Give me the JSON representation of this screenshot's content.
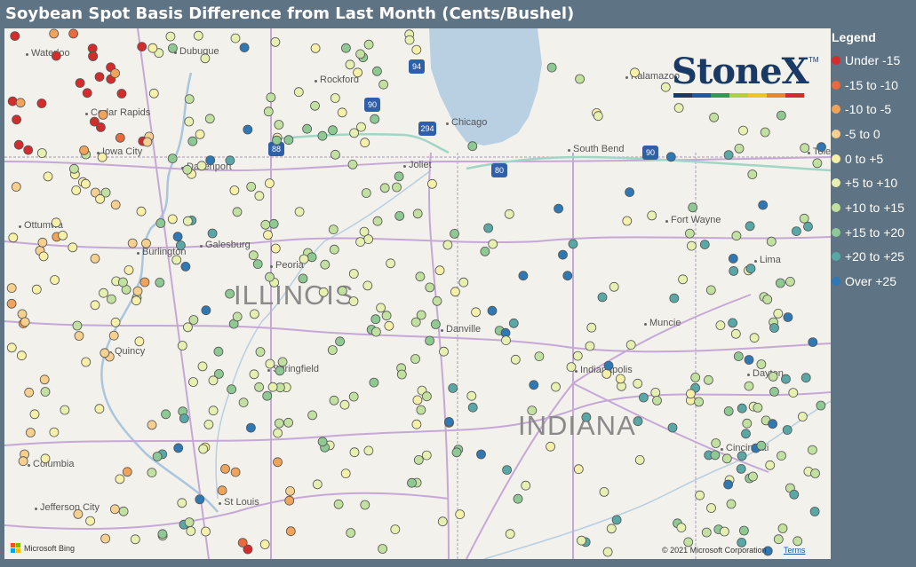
{
  "title": "Soybean Spot Basis Difference from Last Month (Cents/Bushel)",
  "legend": {
    "title": "Legend",
    "items": [
      {
        "label": "Under -15",
        "color": "#d42c2c"
      },
      {
        "label": "-15 to -10",
        "color": "#ea6a3c"
      },
      {
        "label": "-10 to -5",
        "color": "#f2a35a"
      },
      {
        "label": "-5 to 0",
        "color": "#f7cf8e"
      },
      {
        "label": "0 to +5",
        "color": "#f7f0a8"
      },
      {
        "label": "+5 to +10",
        "color": "#e6f0b0"
      },
      {
        "label": "+10 to +15",
        "color": "#c2e0a0"
      },
      {
        "label": "+15 to +20",
        "color": "#8ec994"
      },
      {
        "label": "+20 to +25",
        "color": "#5aa8a6"
      },
      {
        "label": "Over +25",
        "color": "#2f78b4"
      }
    ]
  },
  "logo": {
    "text": "StoneX",
    "tm": "TM",
    "colors": [
      "#1a3a66",
      "#1a5aa6",
      "#2e9a5a",
      "#b9cc3a",
      "#f2c12e",
      "#e8862b",
      "#d42c2c"
    ]
  },
  "attribution": {
    "bing": "Microsoft Bing",
    "copyright": "© 2021 Microsoft Corporation",
    "terms": "Terms"
  },
  "states": [
    "ILLINOIS",
    "INDIANA"
  ],
  "cities": [
    {
      "name": "Waterloo"
    },
    {
      "name": "Dubuque"
    },
    {
      "name": "Rockford"
    },
    {
      "name": "Kalamazoo"
    },
    {
      "name": "Cedar Rapids"
    },
    {
      "name": "Chicago"
    },
    {
      "name": "Iowa City"
    },
    {
      "name": "Davenport"
    },
    {
      "name": "Joliet"
    },
    {
      "name": "South Bend"
    },
    {
      "name": "Toledo"
    },
    {
      "name": "Ottumwa"
    },
    {
      "name": "Galesburg"
    },
    {
      "name": "Fort Wayne"
    },
    {
      "name": "Burlington"
    },
    {
      "name": "Peoria"
    },
    {
      "name": "Lima"
    },
    {
      "name": "Danville"
    },
    {
      "name": "Muncie"
    },
    {
      "name": "Quincy"
    },
    {
      "name": "Springfield"
    },
    {
      "name": "Indianapolis"
    },
    {
      "name": "Dayton"
    },
    {
      "name": "Columbia"
    },
    {
      "name": "Cincinnati"
    },
    {
      "name": "St Louis"
    },
    {
      "name": "Jefferson City"
    }
  ],
  "highways": [
    "94",
    "90",
    "90",
    "88",
    "294",
    "80",
    "90"
  ]
}
